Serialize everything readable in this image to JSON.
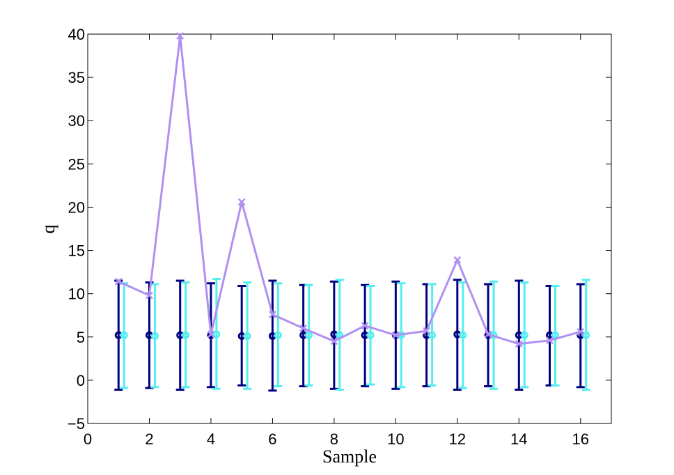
{
  "chart_data": {
    "type": "scatter",
    "xlabel": "Sample",
    "ylabel": "q",
    "xlim": [
      0,
      17
    ],
    "ylim": [
      -5,
      40
    ],
    "xticks": [
      0,
      2,
      4,
      6,
      8,
      10,
      12,
      14,
      16
    ],
    "yticks": [
      -5,
      0,
      5,
      10,
      15,
      20,
      25,
      30,
      35,
      40
    ],
    "xtick_labels": [
      "0",
      "2",
      "4",
      "6",
      "8",
      "10",
      "12",
      "14",
      "16"
    ],
    "ytick_labels": [
      "−5",
      "0",
      "5",
      "10",
      "15",
      "20",
      "25",
      "30",
      "35",
      "40"
    ],
    "grid": false,
    "series": [
      {
        "style": "errorbar",
        "color": "#000080",
        "marker": "o",
        "x": [
          1,
          2,
          3,
          4,
          5,
          6,
          7,
          8,
          9,
          10,
          11,
          12,
          13,
          14,
          15,
          16
        ],
        "y": [
          5.2,
          5.2,
          5.2,
          5.2,
          5.1,
          5.1,
          5.2,
          5.3,
          5.2,
          5.2,
          5.2,
          5.3,
          5.2,
          5.2,
          5.2,
          5.2
        ],
        "lower": [
          -1.1,
          -0.9,
          -1.1,
          -0.8,
          -0.6,
          -1.2,
          -0.7,
          -1.0,
          -0.7,
          -1.0,
          -0.7,
          -1.1,
          -0.7,
          -1.1,
          -0.6,
          -0.8
        ],
        "upper": [
          11.5,
          11.3,
          11.5,
          11.2,
          10.9,
          11.5,
          11.0,
          11.4,
          11.0,
          11.4,
          11.1,
          11.6,
          11.1,
          11.5,
          10.9,
          11.1
        ]
      },
      {
        "style": "errorbar",
        "color": "#55eeee",
        "marker": "o",
        "x": [
          1.18,
          2.18,
          3.18,
          4.18,
          5.18,
          6.18,
          7.18,
          8.18,
          9.18,
          10.18,
          11.18,
          12.18,
          13.18,
          14.18,
          15.18,
          16.18
        ],
        "y": [
          5.2,
          5.1,
          5.2,
          5.3,
          5.1,
          5.2,
          5.2,
          5.2,
          5.2,
          5.2,
          5.2,
          5.2,
          5.2,
          5.2,
          5.2,
          5.2
        ],
        "lower": [
          -0.9,
          -0.8,
          -0.8,
          -1.0,
          -1.0,
          -0.7,
          -0.6,
          -1.1,
          -0.5,
          -0.8,
          -0.6,
          -0.9,
          -1.0,
          -0.8,
          -0.6,
          -1.1
        ],
        "upper": [
          11.2,
          11.1,
          11.3,
          11.7,
          11.3,
          11.2,
          11.0,
          11.6,
          10.9,
          11.2,
          11.1,
          11.3,
          11.4,
          11.3,
          10.9,
          11.6
        ]
      },
      {
        "style": "line",
        "color": "#b090f0",
        "marker": "x",
        "x": [
          1,
          2,
          3,
          4,
          5,
          6,
          7,
          8,
          9,
          10,
          11,
          12,
          13,
          14,
          15,
          16
        ],
        "y": [
          11.4,
          9.8,
          39.8,
          5.3,
          20.6,
          7.6,
          6.0,
          4.5,
          6.3,
          5.2,
          5.7,
          13.9,
          5.3,
          4.2,
          4.6,
          5.6
        ]
      }
    ]
  }
}
